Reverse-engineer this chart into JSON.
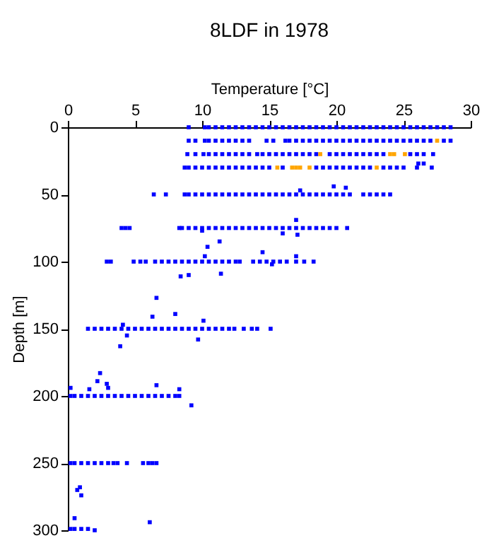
{
  "chart_data": {
    "type": "scatter",
    "title": "8LDF in 1978",
    "xlabel": "Temperature [°C]",
    "ylabel": "Depth [m]",
    "xlim": [
      0,
      30
    ],
    "ylim": [
      300,
      0
    ],
    "xticks": [
      0,
      5,
      10,
      15,
      20,
      25,
      30
    ],
    "yticks": [
      0,
      50,
      100,
      150,
      200,
      250,
      300
    ],
    "grid": false,
    "legend": false,
    "marker": "square",
    "series": [
      {
        "color": "#0000ff",
        "x": [
          9.0,
          10.2,
          10.5,
          11,
          11.5,
          12,
          12.5,
          13,
          13.5,
          14,
          14.5,
          15,
          15.5,
          16,
          16.5,
          17,
          17.5,
          18,
          18.5,
          19,
          19.5,
          20,
          20.5,
          21,
          21.5,
          22,
          22.5,
          23,
          23.5,
          24,
          24.5,
          25,
          25.5,
          26,
          26.5,
          27,
          27.5,
          28,
          28.5
        ],
        "values": [
          0,
          0,
          0,
          0,
          0,
          0,
          0,
          0,
          0,
          0,
          0,
          0,
          0,
          0,
          0,
          0,
          0,
          0,
          0,
          0,
          0,
          0,
          0,
          0,
          0,
          0,
          0,
          0,
          0,
          0,
          0,
          0,
          0,
          0,
          0,
          0,
          0,
          0,
          0
        ]
      },
      {
        "color": "#0000ff",
        "x": [
          9.0,
          9.5,
          10.2,
          10.5,
          11,
          11.5,
          12,
          12.5,
          13,
          13.5,
          14.8,
          15.3,
          16.2,
          16.5,
          17,
          17.5,
          18,
          18.5,
          19,
          19.5,
          20,
          20.5,
          21,
          21.5,
          22,
          22.5,
          23,
          23.5,
          24,
          24.5,
          25,
          25.5,
          26,
          26.5,
          27,
          28,
          28.5
        ],
        "values": [
          10,
          10,
          10,
          10,
          10,
          10,
          10,
          10,
          10,
          10,
          10,
          10,
          10,
          10,
          10,
          10,
          10,
          10,
          10,
          10,
          10,
          10,
          10,
          10,
          10,
          10,
          10,
          10,
          10,
          10,
          10,
          10,
          10,
          10,
          10,
          10,
          10
        ]
      },
      {
        "color": "#0000ff",
        "x": [
          8.9,
          9.5,
          10.1,
          10.5,
          11,
          11.5,
          12,
          12.5,
          13,
          13.5,
          14.1,
          14.5,
          15,
          15.5,
          16,
          16.5,
          17,
          17.5,
          18,
          18.5,
          19.5,
          20,
          20.5,
          21,
          21.5,
          22,
          22.5,
          23,
          23.5,
          25.5,
          26,
          26.5,
          27.2
        ],
        "values": [
          20,
          20,
          20,
          20,
          20,
          20,
          20,
          20,
          20,
          20,
          20,
          20,
          20,
          20,
          20,
          20,
          20,
          20,
          20,
          20,
          20,
          20,
          20,
          20,
          20,
          20,
          20,
          20,
          20,
          20,
          20,
          20,
          20
        ]
      },
      {
        "color": "#0000ff",
        "x": [
          8.7,
          9,
          9.5,
          10,
          10.5,
          11,
          11.5,
          12,
          12.5,
          13,
          13.5,
          14,
          14.5,
          15,
          16,
          18.5,
          19,
          19.5,
          20,
          20.5,
          21,
          21.5,
          22,
          22.5,
          23.5,
          24,
          24.5,
          25,
          26,
          27.1
        ],
        "values": [
          30,
          30,
          30,
          30,
          30,
          30,
          30,
          30,
          30,
          30,
          30,
          30,
          30,
          30,
          30,
          30,
          30,
          30,
          30,
          30,
          30,
          30,
          30,
          30,
          30,
          30,
          30,
          30,
          30,
          30
        ]
      },
      {
        "color": "#0000ff",
        "x": [
          6.4,
          7.3,
          8.7,
          9,
          9.5,
          10,
          10.5,
          11,
          11.5,
          12,
          12.5,
          13,
          13.5,
          14,
          14.5,
          15,
          15.5,
          16,
          16.5,
          17,
          17.5,
          18,
          18.5,
          19,
          19.5,
          20,
          20.5,
          21,
          22,
          22.5,
          23,
          23.5,
          24.0
        ],
        "values": [
          50,
          50,
          50,
          50,
          50,
          50,
          50,
          50,
          50,
          50,
          50,
          50,
          50,
          50,
          50,
          50,
          50,
          50,
          50,
          50,
          50,
          50,
          50,
          50,
          50,
          50,
          50,
          50,
          50,
          50,
          50,
          50,
          50
        ]
      },
      {
        "color": "#0000ff",
        "x": [
          4.0,
          4.3,
          4.6,
          8.3,
          8.5,
          9,
          9.5,
          10,
          10.5,
          11,
          11.5,
          12,
          12.5,
          13,
          13.5,
          14,
          14.5,
          15,
          15.5,
          16,
          16.5,
          17,
          17.5,
          18,
          18.5,
          19,
          19.5,
          20,
          20.8
        ],
        "values": [
          75,
          75,
          75,
          75,
          75,
          75,
          75,
          75,
          75,
          75,
          75,
          75,
          75,
          75,
          75,
          75,
          75,
          75,
          75,
          75,
          75,
          75,
          75,
          75,
          75,
          75,
          75,
          75,
          75
        ]
      },
      {
        "color": "#0000ff",
        "x": [
          2.9,
          3.2,
          4.9,
          5.4,
          5.8,
          6.5,
          7,
          7.5,
          8,
          8.5,
          9,
          9.5,
          10,
          10.5,
          11,
          11.5,
          12,
          12.5,
          12.8,
          13.8,
          14.3,
          14.8,
          15.3,
          15.8,
          16.3,
          17.0,
          17.6,
          18.3
        ],
        "values": [
          100,
          100,
          100,
          100,
          100,
          100,
          100,
          100,
          100,
          100,
          100,
          100,
          100,
          100,
          100,
          100,
          100,
          100,
          100,
          100,
          100,
          100,
          100,
          100,
          100,
          100,
          100,
          100
        ]
      },
      {
        "color": "#0000ff",
        "x": [
          1.5,
          2,
          2.5,
          3,
          3.5,
          4,
          4.5,
          5,
          5.5,
          6,
          6.5,
          7,
          7.5,
          8,
          8.5,
          9,
          9.5,
          10,
          10.5,
          11,
          11.5,
          12,
          12.4,
          13.1,
          13.7,
          14.1,
          15.1
        ],
        "values": [
          150,
          150,
          150,
          150,
          150,
          150,
          150,
          150,
          150,
          150,
          150,
          150,
          150,
          150,
          150,
          150,
          150,
          150,
          150,
          150,
          150,
          150,
          150,
          150,
          150,
          150,
          150
        ]
      },
      {
        "color": "#0000ff",
        "x": [
          0.2,
          0.5,
          1,
          1.5,
          2,
          2.5,
          3,
          3.5,
          4,
          4.5,
          5,
          5.5,
          6,
          6.5,
          7,
          7.5,
          8,
          8.3
        ],
        "values": [
          200,
          200,
          200,
          200,
          200,
          200,
          200,
          200,
          200,
          200,
          200,
          200,
          200,
          200,
          200,
          200,
          200,
          200
        ]
      },
      {
        "color": "#0000ff",
        "x": [
          0.2,
          0.5,
          1,
          1.5,
          2,
          2.5,
          3.0,
          3.4,
          3.7,
          4.4,
          5.6,
          6.0,
          6.3,
          6.6
        ],
        "values": [
          250,
          250,
          250,
          250,
          250,
          250,
          250,
          250,
          250,
          250,
          250,
          250,
          250,
          250
        ]
      },
      {
        "color": "#0000ff",
        "x": [
          26.1,
          26.5,
          19.8,
          20.7,
          17.3,
          17.0,
          16.0,
          17.1,
          10.0,
          10.4,
          11.3,
          8.4,
          9.0,
          11.4,
          10.2,
          14.5,
          17.0,
          15.2,
          6.6,
          6.3,
          8.0,
          10.1,
          4.1,
          4.4,
          9.7,
          3.9,
          2.4,
          0.2,
          2.2,
          2.9,
          3.0,
          1.6,
          6.6,
          8.3,
          9.2,
          0.7,
          0.9,
          1.0,
          0.5,
          0.2,
          0.5,
          1.0,
          1.5,
          2.0,
          6.1
        ],
        "values": [
          27,
          27,
          44,
          45,
          47,
          69,
          79,
          80,
          77,
          89,
          85,
          111,
          110,
          109,
          96,
          93,
          96,
          102,
          127,
          141,
          139,
          144,
          147,
          155,
          158,
          163,
          183,
          194,
          189,
          191,
          194,
          195,
          192,
          195,
          207,
          270,
          268,
          274,
          291,
          299,
          299,
          299,
          299,
          300,
          294
        ]
      },
      {
        "color": "#ffa500",
        "x": [
          27.5,
          18.8,
          24.0,
          24.3,
          25.1,
          15.6,
          16.7,
          17.0,
          17.3,
          18.0,
          23.0
        ],
        "values": [
          10,
          20,
          20,
          20,
          20,
          30,
          30,
          30,
          30,
          30,
          30
        ]
      }
    ]
  }
}
